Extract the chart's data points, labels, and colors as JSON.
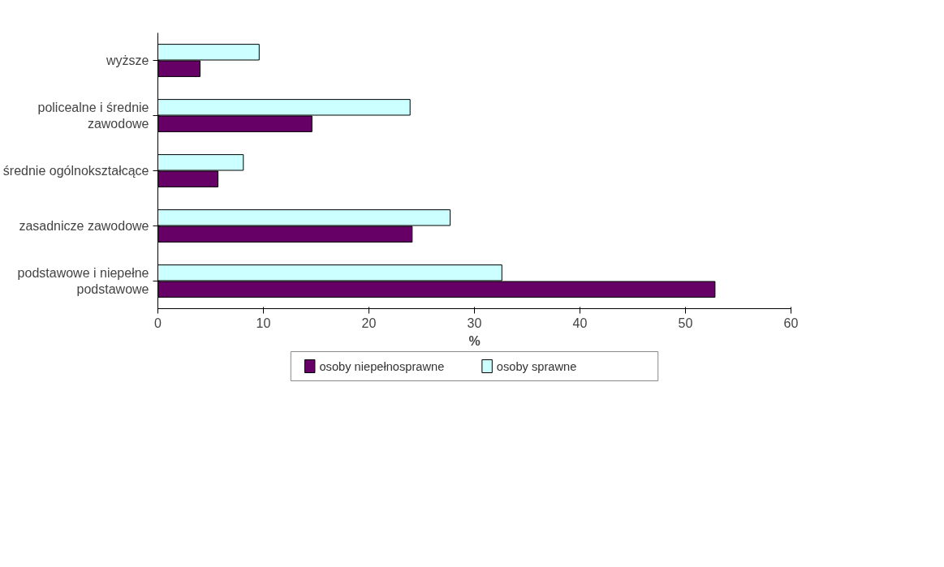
{
  "chart_data": {
    "type": "bar",
    "orientation": "horizontal",
    "xlabel": "%",
    "categories": [
      "wyższe",
      "policealne i średnie\nzawodowe",
      "średnie ogólnokształcące",
      "zasadnicze zawodowe",
      "podstawowe i niepełne\npodstawowe"
    ],
    "series": [
      {
        "name": "osoby niepełnosprawne",
        "color": "#660066",
        "values": [
          4.0,
          14.6,
          5.7,
          24.1,
          52.8
        ]
      },
      {
        "name": "osoby sprawne",
        "color": "#ccffff",
        "values": [
          9.6,
          23.9,
          8.1,
          27.7,
          32.6
        ]
      }
    ],
    "xlim": [
      0,
      60
    ],
    "xticks": [
      0,
      10,
      20,
      30,
      40,
      50,
      60
    ],
    "grid": false,
    "legend": "bottom"
  }
}
